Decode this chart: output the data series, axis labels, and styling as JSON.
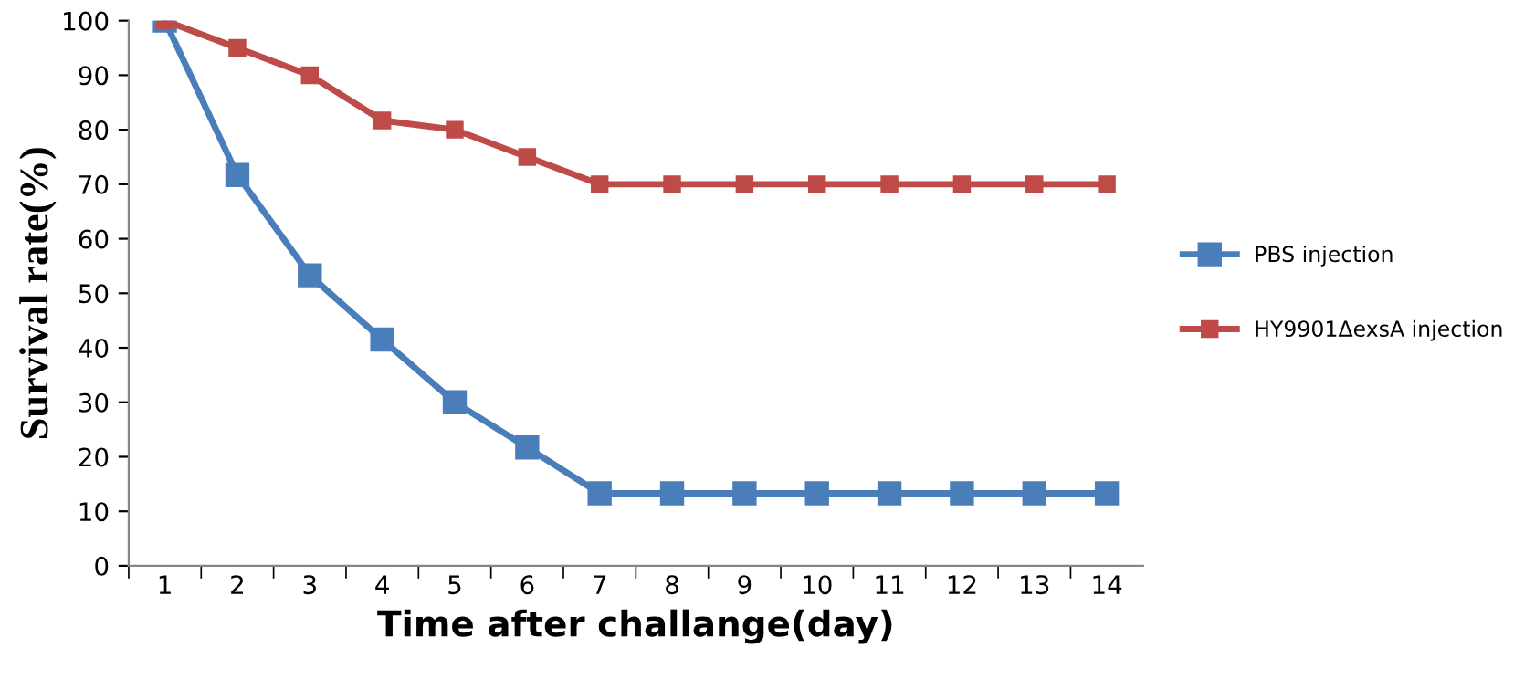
{
  "chart_data": {
    "type": "line",
    "xlabel": "Time after challange(day)",
    "ylabel": "Survival rate(%)",
    "categories": [
      "1",
      "2",
      "3",
      "4",
      "5",
      "6",
      "7",
      "8",
      "9",
      "10",
      "11",
      "12",
      "13",
      "14"
    ],
    "series": [
      {
        "name": "PBS injection",
        "color": "#4a7ebb",
        "values": [
          100,
          71.7,
          53.3,
          41.5,
          30,
          21.7,
          13.3,
          13.3,
          13.3,
          13.3,
          13.3,
          13.3,
          13.3,
          13.3
        ]
      },
      {
        "name": "HY9901ΔexsA injection",
        "color": "#be4b48",
        "values": [
          100,
          95,
          90,
          81.7,
          80,
          75,
          70,
          70,
          70,
          70,
          70,
          70,
          70,
          70
        ]
      }
    ],
    "ylim": [
      0,
      100
    ],
    "yticks": [
      0,
      10,
      20,
      30,
      40,
      50,
      60,
      70,
      80,
      90,
      100
    ],
    "grid": false,
    "legend": "right",
    "marker": "square",
    "line_style": "solid"
  }
}
